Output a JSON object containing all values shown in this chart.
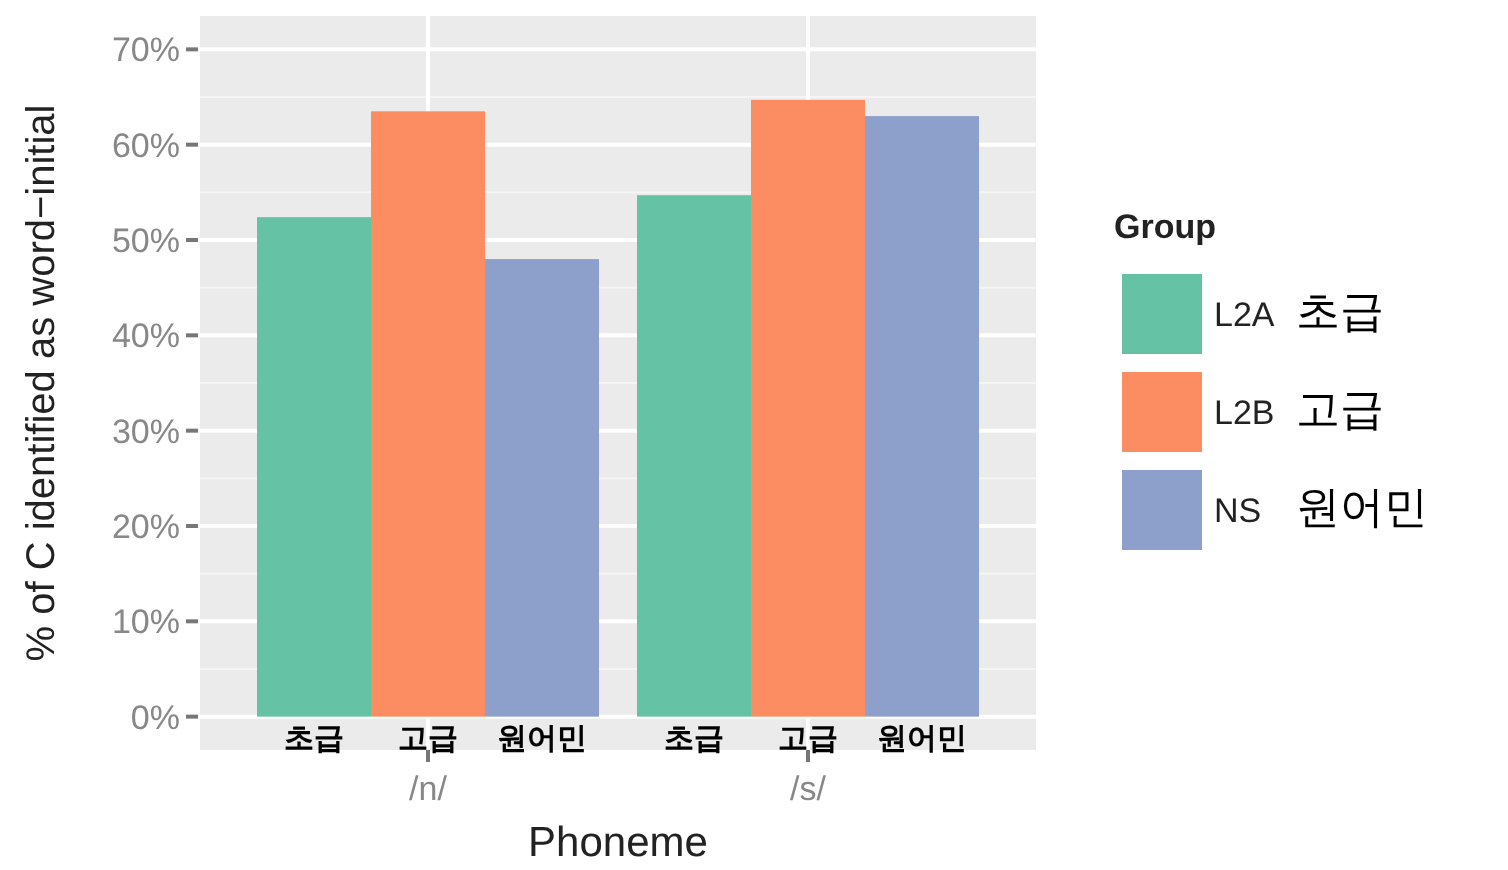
{
  "chart_data": {
    "type": "bar",
    "xlabel": "Phoneme",
    "ylabel": "% of C identified as word−initial",
    "legend_title": "Group",
    "categories": [
      "/n/",
      "/s/"
    ],
    "series": [
      {
        "name": "L2A",
        "color": "#66c2a5",
        "values": [
          52.4,
          54.7
        ]
      },
      {
        "name": "L2B",
        "color": "#fc8d62",
        "values": [
          63.5,
          64.7
        ]
      },
      {
        "name": "NS",
        "color": "#8da0cb",
        "values": [
          48.0,
          63.0
        ]
      }
    ],
    "ylim": [
      -3.5,
      73.5
    ],
    "yticks": [
      {
        "value": 0,
        "label": "0%"
      },
      {
        "value": 10,
        "label": "10%"
      },
      {
        "value": 20,
        "label": "20%"
      },
      {
        "value": 30,
        "label": "30%"
      },
      {
        "value": 40,
        "label": "40%"
      },
      {
        "value": 50,
        "label": "50%"
      },
      {
        "value": 60,
        "label": "60%"
      },
      {
        "value": 70,
        "label": "70%"
      }
    ],
    "grid": true,
    "legend": "right",
    "annotations": [
      "초급",
      "고급",
      "원어민",
      "초급",
      "고급",
      "원어민",
      "초급",
      "고급",
      "원어민"
    ]
  }
}
